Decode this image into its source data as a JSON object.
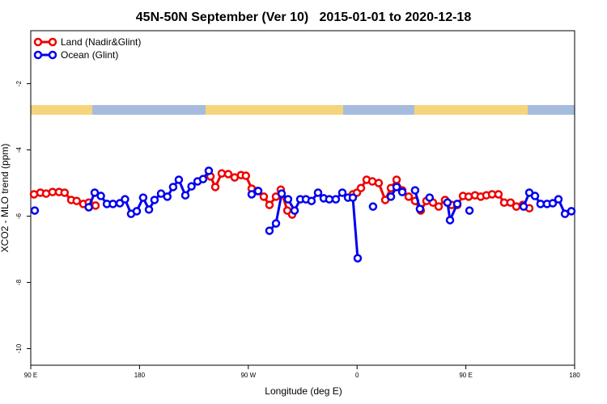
{
  "chart_data": {
    "type": "line",
    "title": "45N-50N September (Ver 10)   2015-01-01 to 2020-12-18",
    "x_label": "Longitude (deg E)",
    "y_label": "XCO2 - MLO trend (ppm)",
    "xlim": [
      90,
      540
    ],
    "ylim": [
      -10.5,
      -0.4
    ],
    "xticks": [
      {
        "value": 90,
        "label": "90 E"
      },
      {
        "value": 180,
        "label": "180"
      },
      {
        "value": 270,
        "label": "90 W"
      },
      {
        "value": 360,
        "label": "0"
      },
      {
        "value": 450,
        "label": "90 E"
      },
      {
        "value": 540,
        "label": "180"
      }
    ],
    "yticks": [
      -10,
      -8,
      -6,
      -4,
      -2
    ],
    "legend": "top-left",
    "series": [
      {
        "name": "Land (Nadir&Glint)",
        "color": "#ee0000",
        "x": [
          92.7,
          98,
          102.7,
          108,
          113.4,
          118,
          123.5,
          128,
          133.5,
          138,
          143.6,
          null,
          238.7,
          242.7,
          248,
          253.4,
          258.7,
          264,
          268,
          272.8,
          277.5,
          282.8,
          287.5,
          292.9,
          296.9,
          302.3,
          306.3,
          null,
          356.5,
          359.9,
          363.2,
          367.9,
          372.6,
          377.9,
          383.3,
          388,
          392.7,
          397.4,
          402.7,
          408,
          412.7,
          417.4,
          422.8,
          427.5,
          432.8,
          438.2,
          442.9,
          447.6,
          452.3,
          457.6,
          462.3,
          467,
          471.7,
          477,
          481.7,
          487,
          491.8,
          497.1,
          502.5
        ],
        "values": [
          -5.34,
          -5.29,
          -5.32,
          -5.27,
          -5.27,
          -5.29,
          -5.51,
          -5.54,
          -5.63,
          -5.59,
          -5.68,
          null,
          -4.8,
          -5.12,
          -4.71,
          -4.73,
          -4.83,
          -4.76,
          -4.78,
          -5.17,
          -5.24,
          -5.41,
          -5.66,
          -5.41,
          -5.2,
          -5.83,
          -5.95,
          null,
          -5.34,
          -5.29,
          -5.15,
          -4.9,
          -4.95,
          -5.0,
          -5.51,
          -5.15,
          -4.9,
          -5.22,
          -5.41,
          -5.54,
          -5.83,
          -5.54,
          -5.59,
          -5.71,
          -5.51,
          -5.66,
          -5.66,
          -5.39,
          -5.41,
          -5.37,
          -5.41,
          -5.37,
          -5.34,
          -5.34,
          -5.59,
          -5.59,
          -5.71,
          -5.66,
          -5.76
        ]
      },
      {
        "name": "Ocean (Glint)",
        "color": "#0000ee",
        "x": [
          93.3,
          null,
          138,
          142.9,
          148,
          153,
          158,
          163.7,
          168,
          173,
          177.7,
          183,
          187.8,
          192.4,
          197.8,
          203,
          207.8,
          212.5,
          217.9,
          223,
          228,
          232.6,
          237.3,
          null,
          272.8,
          278.2,
          null,
          287.5,
          292.9,
          297.6,
          302.9,
          308.3,
          313,
          317.7,
          322.3,
          327.7,
          332.4,
          337,
          342.4,
          347.8,
          352.5,
          356.5,
          360.5,
          null,
          373.2,
          null,
          388,
          392.7,
          397.4,
          null,
          408,
          412,
          null,
          420,
          null,
          434.8,
          436.9,
          442.9,
          null,
          453,
          null,
          497.8,
          502.5,
          507.2,
          511.8,
          517.2,
          521.9,
          526.6,
          532,
          537.3
        ],
        "values": [
          -5.83,
          null,
          -5.73,
          -5.29,
          -5.39,
          -5.63,
          -5.63,
          -5.61,
          -5.49,
          -5.93,
          -5.85,
          -5.44,
          -5.8,
          -5.51,
          -5.32,
          -5.41,
          -5.12,
          -4.9,
          -5.37,
          -5.1,
          -4.95,
          -4.88,
          -4.63,
          null,
          -5.34,
          -5.24,
          null,
          -6.44,
          -6.22,
          -5.32,
          -5.49,
          -5.83,
          -5.49,
          -5.49,
          -5.54,
          -5.29,
          -5.46,
          -5.49,
          -5.49,
          -5.29,
          -5.44,
          -5.44,
          -7.27,
          null,
          -5.71,
          null,
          -5.41,
          -5.12,
          -5.27,
          null,
          -5.22,
          -5.78,
          null,
          -5.44,
          null,
          -5.59,
          -6.12,
          -5.63,
          null,
          -5.83,
          null,
          -5.71,
          -5.29,
          -5.39,
          -5.63,
          -5.63,
          -5.61,
          -5.49,
          -5.93,
          -5.85
        ]
      }
    ]
  }
}
